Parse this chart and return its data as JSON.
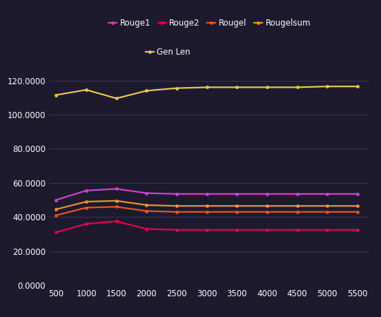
{
  "x": [
    500,
    1000,
    1500,
    2000,
    2500,
    3000,
    3500,
    4000,
    4500,
    5000,
    5500
  ],
  "rouge1": [
    50.0,
    55.5,
    56.5,
    54.0,
    53.5,
    53.5,
    53.5,
    53.5,
    53.5,
    53.5,
    53.5
  ],
  "rouge2": [
    31.0,
    36.0,
    37.5,
    33.0,
    32.5,
    32.5,
    32.5,
    32.5,
    32.5,
    32.5,
    32.5
  ],
  "rougel": [
    41.0,
    45.5,
    46.0,
    43.5,
    43.0,
    43.0,
    43.0,
    43.0,
    43.0,
    43.0,
    43.0
  ],
  "rougelsum": [
    44.5,
    49.0,
    49.5,
    47.0,
    46.5,
    46.5,
    46.5,
    46.5,
    46.5,
    46.5,
    46.5
  ],
  "gen_len": [
    111.5,
    114.5,
    109.5,
    114.0,
    115.5,
    116.0,
    116.0,
    116.0,
    116.0,
    116.5,
    116.5
  ],
  "series_colors": {
    "rouge1": "#cc44cc",
    "rouge2": "#e8004d",
    "rougel": "#e85520",
    "rougelsum": "#e8952a",
    "gen_len": "#e8c84a"
  },
  "series_labels": {
    "rouge1": "Rouge1",
    "rouge2": "Rouge2",
    "rougel": "Rougel",
    "rougelsum": "Rougelsum",
    "gen_len": "Gen Len"
  },
  "series_order": [
    "rouge1",
    "rouge2",
    "rougel",
    "rougelsum",
    "gen_len"
  ],
  "background_color": "#1e1a2e",
  "grid_color": "#3a3555",
  "text_color": "#ffffff",
  "ylim": [
    0,
    130
  ],
  "yticks": [
    0.0,
    20.0,
    40.0,
    60.0,
    80.0,
    100.0,
    120.0
  ],
  "xticks": [
    500,
    1000,
    1500,
    2000,
    2500,
    3000,
    3500,
    4000,
    4500,
    5000,
    5500
  ],
  "marker": "o",
  "marker_size": 3.5,
  "line_width": 1.6,
  "legend_fontsize": 8.5,
  "tick_fontsize": 8.5
}
